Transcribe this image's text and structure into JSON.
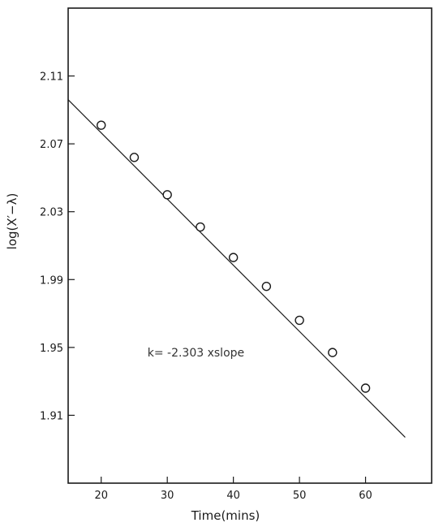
{
  "chart_data": {
    "type": "scatter",
    "title": "",
    "xlabel": "Time(mins)",
    "ylabel": "log(X′−λ)",
    "xlim": [
      15,
      70
    ],
    "ylim": [
      1.87,
      2.15
    ],
    "x_ticks": [
      20,
      30,
      40,
      50,
      60
    ],
    "y_ticks": [
      1.91,
      1.95,
      1.99,
      2.03,
      2.07,
      2.11
    ],
    "x_tick_labels": [
      "20",
      "30",
      "40",
      "50",
      "60"
    ],
    "y_tick_labels": [
      "1.91",
      "1.95",
      "1.99",
      "2.03",
      "2.07",
      "2.11"
    ],
    "grid": false,
    "series": [
      {
        "x": [
          20,
          25,
          30,
          35,
          40,
          45,
          50,
          55,
          60
        ],
        "y": [
          2.081,
          2.062,
          2.04,
          2.021,
          2.003,
          1.986,
          1.966,
          1.947,
          1.926
        ]
      }
    ],
    "fit_line": {
      "x": [
        15,
        66
      ],
      "y": [
        2.096,
        1.897
      ]
    },
    "annotation": {
      "text": "k= -2.303 xslope",
      "x": 27,
      "y": 1.947
    }
  }
}
